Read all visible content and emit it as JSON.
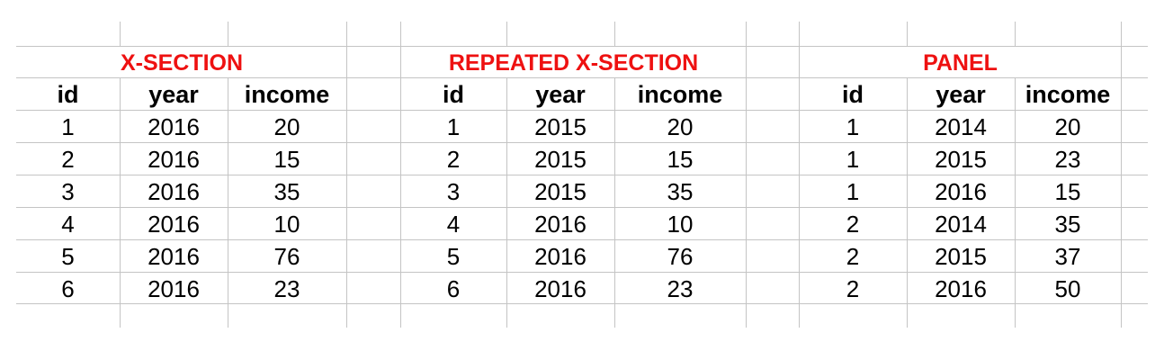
{
  "colors": {
    "title": "#ee1111",
    "grid": "#c4c4c4",
    "text": "#000000"
  },
  "sections": [
    {
      "title": "X-SECTION",
      "headers": [
        "id",
        "year",
        "income"
      ],
      "rows": [
        [
          "1",
          "2016",
          "20"
        ],
        [
          "2",
          "2016",
          "15"
        ],
        [
          "3",
          "2016",
          "35"
        ],
        [
          "4",
          "2016",
          "10"
        ],
        [
          "5",
          "2016",
          "76"
        ],
        [
          "6",
          "2016",
          "23"
        ]
      ]
    },
    {
      "title": "REPEATED X-SECTION",
      "headers": [
        "id",
        "year",
        "income"
      ],
      "rows": [
        [
          "1",
          "2015",
          "20"
        ],
        [
          "2",
          "2015",
          "15"
        ],
        [
          "3",
          "2015",
          "35"
        ],
        [
          "4",
          "2016",
          "10"
        ],
        [
          "5",
          "2016",
          "76"
        ],
        [
          "6",
          "2016",
          "23"
        ]
      ]
    },
    {
      "title": "PANEL",
      "headers": [
        "id",
        "year",
        "income"
      ],
      "rows": [
        [
          "1",
          "2014",
          "20"
        ],
        [
          "1",
          "2015",
          "23"
        ],
        [
          "1",
          "2016",
          "15"
        ],
        [
          "2",
          "2014",
          "35"
        ],
        [
          "2",
          "2015",
          "37"
        ],
        [
          "2",
          "2016",
          "50"
        ]
      ]
    }
  ]
}
